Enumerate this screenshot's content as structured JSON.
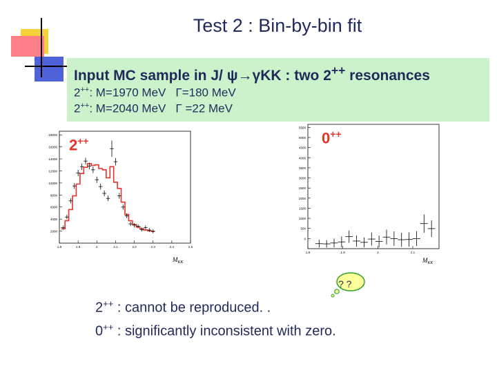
{
  "slide": {
    "title": "Test 2 : Bin-by-bin fit"
  },
  "panel": {
    "header_prefix": "Input MC sample in J/ ",
    "header_psi": "ψ",
    "header_arrow": "→",
    "header_gamma": "γ",
    "header_suffix": "KK : two 2",
    "header_sup": "++",
    "header_end": " resonances",
    "line1": {
      "jpc": "2",
      "sup": "++",
      "mass": ":  M=1970 MeV",
      "width": "Γ=180 MeV"
    },
    "line2": {
      "jpc": "2",
      "sup": "++",
      "mass": ":  M=2040 MeV",
      "width": "Γ  =22 MeV"
    }
  },
  "labels": {
    "left_jpc": "2",
    "left_jpc_sup": "++",
    "right_jpc": "0",
    "right_jpc_sup": "++",
    "left_xlabel": "M",
    "left_xlabel_sub": "KK",
    "right_xlabel": "M",
    "right_xlabel_sub": "KK"
  },
  "bubble": {
    "text": "? ?"
  },
  "conclusions": [
    {
      "jpc": "2",
      "sup": "++",
      "text": " : cannot be reproduced.    ."
    },
    {
      "jpc": "0",
      "sup": "++",
      "text": " : significantly inconsistent with zero."
    }
  ],
  "colors": {
    "model": "#e8322b",
    "points": "#000000",
    "text": "#1f2a5a",
    "panel": "#ccf2cc"
  },
  "chart_data": [
    {
      "type": "line",
      "component": "2++",
      "x": [
        1.82,
        1.84,
        1.86,
        1.88,
        1.9,
        1.92,
        1.94,
        1.96,
        1.98,
        2.0,
        2.02,
        2.04,
        2.06,
        2.08,
        2.1,
        2.12,
        2.14,
        2.16,
        2.18,
        2.2,
        2.22,
        2.24,
        2.26,
        2.28,
        2.3
      ],
      "model": [
        2300,
        3600,
        5400,
        7600,
        9500,
        11200,
        12200,
        12800,
        12500,
        12600,
        12000,
        11800,
        10500,
        12300,
        9800,
        8800,
        6600,
        4600,
        3600,
        3000,
        2600,
        2300,
        2100,
        2000,
        1900
      ],
      "points": [
        2500,
        4200,
        6800,
        9200,
        11300,
        12300,
        13200,
        12400,
        11800,
        10200,
        9100,
        8000,
        7200,
        15200,
        13100,
        7600,
        5800,
        4400,
        3100,
        2900,
        2700,
        2200,
        2500,
        2100,
        1900
      ],
      "errors": [
        300,
        350,
        400,
        450,
        500,
        520,
        540,
        530,
        520,
        500,
        480,
        460,
        450,
        1300,
        600,
        450,
        400,
        380,
        350,
        340,
        330,
        320,
        330,
        320,
        300
      ],
      "x_ticks": [
        "1.8",
        "1.9",
        "2",
        "2.1",
        "2.2",
        "2.3",
        "2.4",
        "2.5"
      ],
      "y_ticks": [
        "2000",
        "4000",
        "6000",
        "8000",
        "10000",
        "12000",
        "14000",
        "16000",
        "18000"
      ],
      "ylim": [
        0,
        18000
      ],
      "xlim": [
        1.8,
        2.5
      ]
    },
    {
      "type": "scatter",
      "component": "0++",
      "x": [
        1.83,
        1.85,
        1.87,
        1.89,
        1.91,
        1.93,
        1.95,
        1.97,
        1.99,
        2.01,
        2.03,
        2.05,
        2.07,
        2.09,
        2.11,
        2.13
      ],
      "values": [
        30,
        20,
        60,
        110,
        350,
        150,
        90,
        240,
        130,
        330,
        260,
        210,
        220,
        260,
        950,
        720
      ],
      "errors": [
        180,
        170,
        200,
        250,
        280,
        260,
        230,
        300,
        270,
        340,
        330,
        320,
        330,
        340,
        420,
        380
      ],
      "x_ticks": [
        "1.8",
        "1.9",
        "2",
        "2.1"
      ],
      "y_ticks": [
        "0",
        "500",
        "1000",
        "1500",
        "2000",
        "2500",
        "3000",
        "3500",
        "4000",
        "4500",
        "5000",
        "5500"
      ],
      "ylim": [
        -200,
        5500
      ],
      "xlim": [
        1.8,
        2.15
      ]
    }
  ]
}
